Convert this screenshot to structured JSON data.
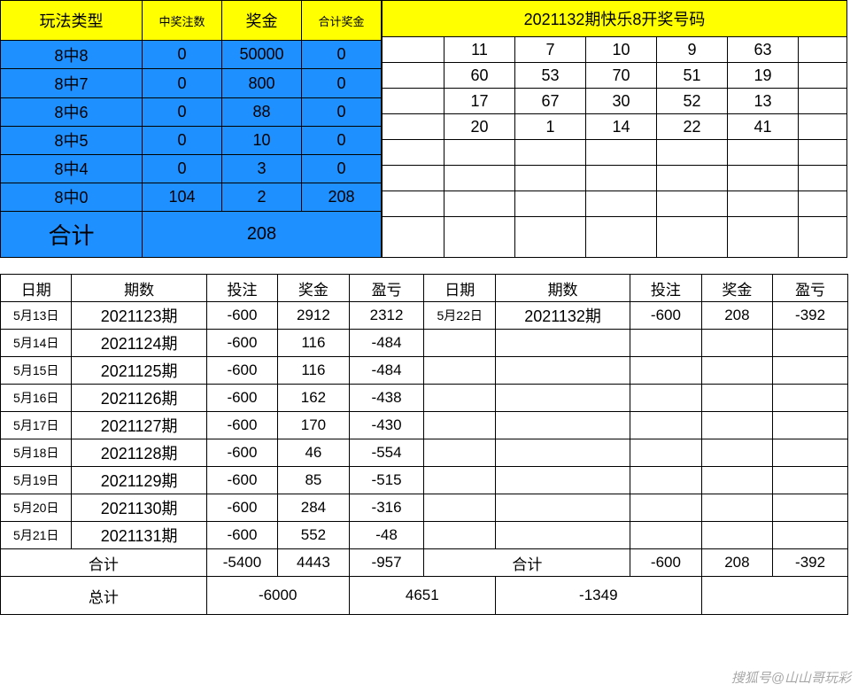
{
  "colors": {
    "yellow": "#ffff00",
    "blue": "#1e90ff",
    "border": "#000000",
    "bg": "#ffffff"
  },
  "prize_table": {
    "headers": [
      "玩法类型",
      "中奖注数",
      "奖金",
      "合计奖金"
    ],
    "rows": [
      {
        "type": "8中8",
        "count": "0",
        "prize": "50000",
        "total": "0"
      },
      {
        "type": "8中7",
        "count": "0",
        "prize": "800",
        "total": "0"
      },
      {
        "type": "8中6",
        "count": "0",
        "prize": "88",
        "total": "0"
      },
      {
        "type": "8中5",
        "count": "0",
        "prize": "10",
        "total": "0"
      },
      {
        "type": "8中4",
        "count": "0",
        "prize": "3",
        "total": "0"
      },
      {
        "type": "8中0",
        "count": "104",
        "prize": "2",
        "total": "208"
      }
    ],
    "sum_label": "合计",
    "sum_value": "208"
  },
  "numbers_panel": {
    "title": "2021132期快乐8开奖号码",
    "grid": [
      [
        "11",
        "7",
        "10",
        "9",
        "63"
      ],
      [
        "60",
        "53",
        "70",
        "51",
        "19"
      ],
      [
        "17",
        "67",
        "30",
        "52",
        "13"
      ],
      [
        "20",
        "1",
        "14",
        "22",
        "41"
      ],
      [
        "",
        "",
        "",
        "",
        "",
        ""
      ],
      [
        "",
        "",
        "",
        "",
        "",
        ""
      ],
      [
        "",
        "",
        "",
        "",
        "",
        ""
      ],
      [
        "",
        "",
        "",
        "",
        "",
        ""
      ]
    ]
  },
  "lower_table": {
    "headers": [
      "日期",
      "期数",
      "投注",
      "奖金",
      "盈亏",
      "日期",
      "期数",
      "投注",
      "奖金",
      "盈亏"
    ],
    "rows": [
      [
        "5月13日",
        "2021123期",
        "-600",
        "2912",
        "2312",
        "5月22日",
        "2021132期",
        "-600",
        "208",
        "-392"
      ],
      [
        "5月14日",
        "2021124期",
        "-600",
        "116",
        "-484",
        "",
        "",
        "",
        "",
        ""
      ],
      [
        "5月15日",
        "2021125期",
        "-600",
        "116",
        "-484",
        "",
        "",
        "",
        "",
        ""
      ],
      [
        "5月16日",
        "2021126期",
        "-600",
        "162",
        "-438",
        "",
        "",
        "",
        "",
        ""
      ],
      [
        "5月17日",
        "2021127期",
        "-600",
        "170",
        "-430",
        "",
        "",
        "",
        "",
        ""
      ],
      [
        "5月18日",
        "2021128期",
        "-600",
        "46",
        "-554",
        "",
        "",
        "",
        "",
        ""
      ],
      [
        "5月19日",
        "2021129期",
        "-600",
        "85",
        "-515",
        "",
        "",
        "",
        "",
        ""
      ],
      [
        "5月20日",
        "2021130期",
        "-600",
        "284",
        "-316",
        "",
        "",
        "",
        "",
        ""
      ],
      [
        "5月21日",
        "2021131期",
        "-600",
        "552",
        "-48",
        "",
        "",
        "",
        "",
        ""
      ]
    ],
    "subtotal": {
      "label": "合计",
      "bet": "-5400",
      "prize": "4443",
      "pl": "-957",
      "label2": "合计",
      "bet2": "-600",
      "prize2": "208",
      "pl2": "-392"
    },
    "grand": {
      "label": "总计",
      "bet": "-6000",
      "prize": "4651",
      "pl": "-1349"
    }
  },
  "watermark": "搜狐号@山山哥玩彩"
}
